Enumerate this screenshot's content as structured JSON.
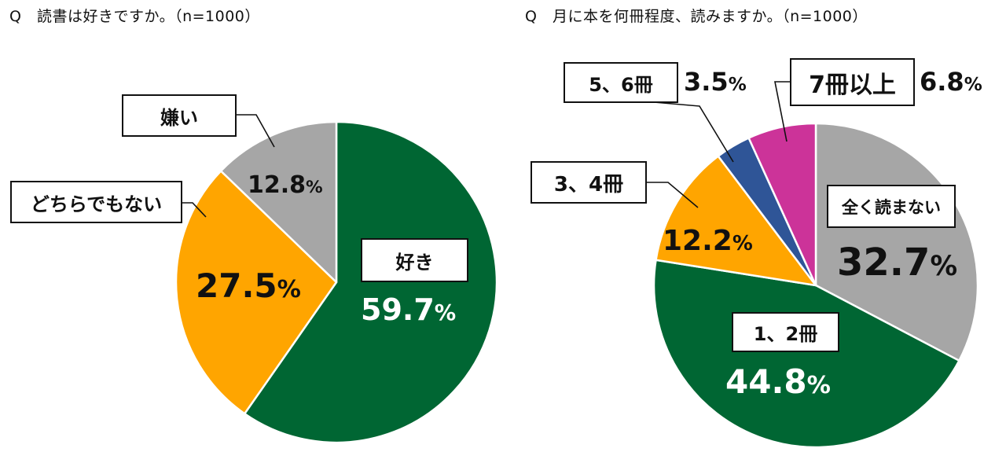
{
  "chart_data": [
    {
      "type": "pie",
      "title": "Q　読書は好きですか。（n=1000）",
      "n": 1000,
      "start_angle_deg": 0,
      "direction": "clockwise",
      "categories": [
        "好き",
        "どちらでもない",
        "嫌い"
      ],
      "values": [
        59.7,
        27.5,
        12.8
      ],
      "unit": "%",
      "colors": [
        "#006633",
        "#FFA500",
        "#A6A6A6"
      ],
      "labels": [
        {
          "category": "好き",
          "value_text": "59.7",
          "value_color": "#ffffff"
        },
        {
          "category": "どちらでもない",
          "value_text": "27.5",
          "value_color": "#111111"
        },
        {
          "category": "嫌い",
          "value_text": "12.8",
          "value_color": "#111111"
        }
      ]
    },
    {
      "type": "pie",
      "title": "Q　月に本を何冊程度、読みますか。（n=1000）",
      "n": 1000,
      "start_angle_deg": 0,
      "direction": "clockwise",
      "categories": [
        "全く読まない",
        "1、2冊",
        "3、4冊",
        "5、6冊",
        "7冊以上"
      ],
      "values": [
        32.7,
        44.8,
        12.2,
        3.5,
        6.8
      ],
      "unit": "%",
      "colors": [
        "#A6A6A6",
        "#006633",
        "#FFA500",
        "#2F5597",
        "#CC3399"
      ],
      "labels": [
        {
          "category": "全く読まない",
          "value_text": "32.7",
          "value_color": "#111111"
        },
        {
          "category": "1、2冊",
          "value_text": "44.8",
          "value_color": "#ffffff"
        },
        {
          "category": "3、4冊",
          "value_text": "12.2",
          "value_color": "#111111"
        },
        {
          "category": "5、6冊",
          "value_text": "3.5",
          "value_color": "#111111"
        },
        {
          "category": "7冊以上",
          "value_text": "6.8",
          "value_color": "#111111"
        }
      ]
    }
  ],
  "left": {
    "title": "Q　読書は好きですか。（n=1000）",
    "labels": {
      "like": "好き",
      "neutral": "どちらでもない",
      "dislike": "嫌い"
    },
    "values": {
      "like": "59.7",
      "neutral": "27.5",
      "dislike": "12.8"
    }
  },
  "right": {
    "title": "Q　月に本を何冊程度、読みますか。（n=1000）",
    "labels": {
      "none": "全く読まない",
      "one_two": "1、2冊",
      "three_four": "3、4冊",
      "five_six": "5、6冊",
      "seven_plus": "7冊以上"
    },
    "values": {
      "none": "32.7",
      "one_two": "44.8",
      "three_four": "12.2",
      "five_six": "3.5",
      "seven_plus": "6.8"
    }
  },
  "percent_symbol": "%"
}
